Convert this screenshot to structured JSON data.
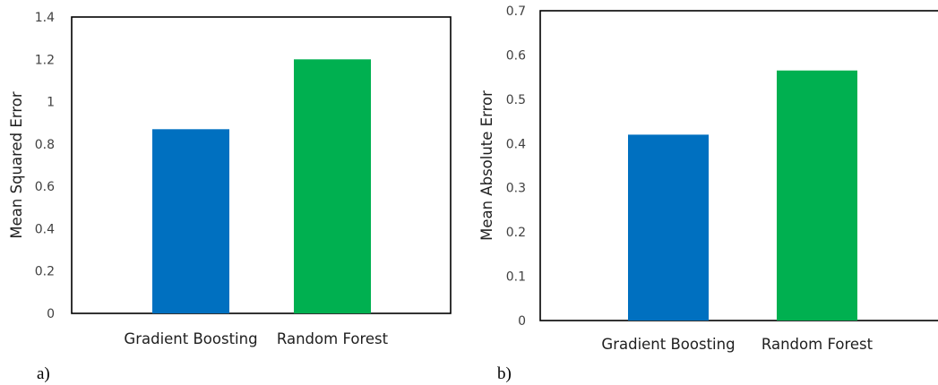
{
  "chart_data": [
    {
      "type": "bar",
      "panel_label": "a)",
      "title": "",
      "xlabel": "",
      "ylabel": "Mean Squared Error",
      "categories": [
        "Gradient Boosting",
        "Random Forest"
      ],
      "values": [
        0.87,
        1.2
      ],
      "colors": [
        "#0070c0",
        "#00b050"
      ],
      "ylim": [
        0,
        1.4
      ],
      "yticks": [
        "0",
        "0.2",
        "0.4",
        "0.6",
        "0.8",
        "1",
        "1.2",
        "1.4"
      ],
      "grid": false,
      "legend": "none"
    },
    {
      "type": "bar",
      "panel_label": "b)",
      "title": "",
      "xlabel": "",
      "ylabel": "Mean Absolute Error",
      "categories": [
        "Gradient Boosting",
        "Random Forest"
      ],
      "values": [
        0.42,
        0.565
      ],
      "colors": [
        "#0070c0",
        "#00b050"
      ],
      "ylim": [
        0,
        0.7
      ],
      "yticks": [
        "0",
        "0.1",
        "0.2",
        "0.3",
        "0.4",
        "0.5",
        "0.6",
        "0.7"
      ],
      "grid": false,
      "legend": "none"
    }
  ]
}
